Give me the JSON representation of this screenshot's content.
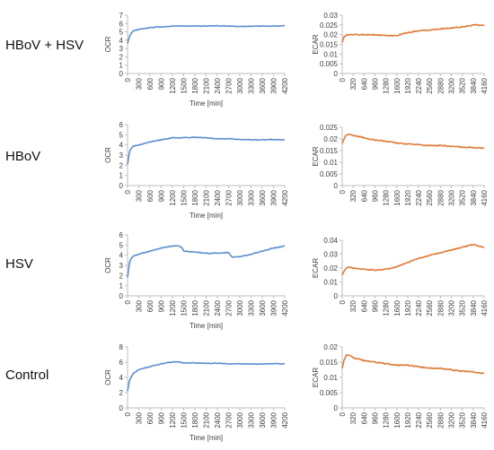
{
  "rows": [
    {
      "label": "HBoV + HSV"
    },
    {
      "label": "HBoV"
    },
    {
      "label": "HSV"
    },
    {
      "label": "Control"
    }
  ],
  "colors": {
    "ocr": "#5b8fd0",
    "ecar": "#e07b39",
    "axis": "#bfbfbf",
    "text": "#404040"
  },
  "chart_data": [
    {
      "type": "line",
      "row": "HBoV + HSV",
      "ylabel": "OCR",
      "xlabel": "Time [min]",
      "ylim": [
        0,
        7
      ],
      "yticks": [
        0,
        1,
        2,
        3,
        4,
        5,
        6,
        7
      ],
      "xticks": [
        0,
        300,
        600,
        900,
        1200,
        1500,
        1800,
        2100,
        2400,
        2700,
        3000,
        3300,
        3600,
        3900,
        4200
      ],
      "xlim": [
        0,
        4200
      ],
      "series": [
        {
          "x": [
            0,
            60,
            150,
            300,
            600,
            900,
            1200,
            1500,
            1800,
            2100,
            2400,
            2700,
            3000,
            3300,
            3600,
            3900,
            4200
          ],
          "y": [
            3.6,
            4.6,
            5.1,
            5.3,
            5.5,
            5.6,
            5.7,
            5.7,
            5.7,
            5.7,
            5.75,
            5.7,
            5.65,
            5.65,
            5.7,
            5.7,
            5.75
          ]
        }
      ]
    },
    {
      "type": "line",
      "row": "HBoV + HSV",
      "ylabel": "ECAR",
      "xlabel": "",
      "ylim": [
        0,
        0.03
      ],
      "yticks": [
        0,
        0.005,
        0.01,
        0.015,
        0.02,
        0.025,
        0.03
      ],
      "xticks": [
        0,
        320,
        640,
        960,
        1280,
        1600,
        1920,
        2240,
        2560,
        2880,
        3200,
        3520,
        3840,
        4160
      ],
      "xlim": [
        0,
        4160
      ],
      "series": [
        {
          "x": [
            0,
            50,
            150,
            320,
            640,
            960,
            1280,
            1600,
            1920,
            2240,
            2560,
            2880,
            3200,
            3520,
            3840,
            4160
          ],
          "y": [
            0.016,
            0.019,
            0.02,
            0.02,
            0.02,
            0.02,
            0.0195,
            0.0195,
            0.021,
            0.022,
            0.0225,
            0.023,
            0.0235,
            0.024,
            0.025,
            0.025
          ]
        }
      ]
    },
    {
      "type": "line",
      "row": "HBoV",
      "ylabel": "OCR",
      "xlabel": "Time [min]",
      "ylim": [
        0,
        6
      ],
      "yticks": [
        0,
        1,
        2,
        3,
        4,
        5,
        6
      ],
      "xticks": [
        0,
        300,
        600,
        900,
        1200,
        1500,
        1800,
        2100,
        2400,
        2700,
        3000,
        3300,
        3600,
        3900,
        4200
      ],
      "xlim": [
        0,
        4200
      ],
      "series": [
        {
          "x": [
            0,
            60,
            150,
            300,
            600,
            900,
            1200,
            1500,
            1800,
            2100,
            2400,
            2700,
            3000,
            3300,
            3600,
            3900,
            4200
          ],
          "y": [
            2.1,
            3.5,
            3.9,
            4.0,
            4.3,
            4.5,
            4.7,
            4.7,
            4.75,
            4.7,
            4.6,
            4.6,
            4.55,
            4.5,
            4.5,
            4.55,
            4.5
          ]
        }
      ]
    },
    {
      "type": "line",
      "row": "HBoV",
      "ylabel": "ECAR",
      "xlabel": "",
      "ylim": [
        0,
        0.025
      ],
      "yticks": [
        0,
        0.005,
        0.01,
        0.015,
        0.02,
        0.025
      ],
      "xticks": [
        0,
        320,
        640,
        960,
        1280,
        1600,
        1920,
        2240,
        2560,
        2880,
        3200,
        3520,
        3840,
        4160
      ],
      "xlim": [
        0,
        4160
      ],
      "series": [
        {
          "x": [
            0,
            80,
            160,
            320,
            640,
            960,
            1280,
            1600,
            1920,
            2240,
            2560,
            2880,
            3200,
            3520,
            3840,
            4160
          ],
          "y": [
            0.018,
            0.021,
            0.022,
            0.0215,
            0.0205,
            0.0195,
            0.019,
            0.0182,
            0.0178,
            0.0175,
            0.0172,
            0.0172,
            0.0168,
            0.0165,
            0.0163,
            0.016
          ]
        }
      ]
    },
    {
      "type": "line",
      "row": "HSV",
      "ylabel": "OCR",
      "xlabel": "Time [min]",
      "ylim": [
        0,
        6
      ],
      "yticks": [
        0,
        1,
        2,
        3,
        4,
        5,
        6
      ],
      "xticks": [
        0,
        300,
        600,
        900,
        1200,
        1500,
        1800,
        2100,
        2400,
        2700,
        3000,
        3300,
        3600,
        3900,
        4200
      ],
      "xlim": [
        0,
        4200
      ],
      "series": [
        {
          "x": [
            0,
            60,
            150,
            300,
            600,
            900,
            1200,
            1350,
            1450,
            1500,
            1800,
            2100,
            2400,
            2700,
            2750,
            2800,
            3000,
            3300,
            3600,
            3900,
            4200
          ],
          "y": [
            1.8,
            3.5,
            3.9,
            4.1,
            4.4,
            4.7,
            4.9,
            4.9,
            4.8,
            4.4,
            4.3,
            4.2,
            4.2,
            4.25,
            4.0,
            3.8,
            3.85,
            4.1,
            4.4,
            4.7,
            4.9
          ]
        }
      ]
    },
    {
      "type": "line",
      "row": "HSV",
      "ylabel": "ECAR",
      "xlabel": "",
      "ylim": [
        0,
        0.04
      ],
      "yticks": [
        0,
        0.01,
        0.02,
        0.03,
        0.04
      ],
      "xticks": [
        0,
        320,
        640,
        960,
        1280,
        1600,
        1920,
        2240,
        2560,
        2880,
        3200,
        3520,
        3840,
        4160
      ],
      "xlim": [
        0,
        4160
      ],
      "series": [
        {
          "x": [
            0,
            80,
            160,
            320,
            640,
            960,
            1280,
            1600,
            1920,
            2240,
            2560,
            2880,
            3200,
            3520,
            3840,
            4000,
            4160
          ],
          "y": [
            0.015,
            0.019,
            0.021,
            0.02,
            0.019,
            0.0185,
            0.019,
            0.021,
            0.024,
            0.027,
            0.029,
            0.031,
            0.033,
            0.035,
            0.037,
            0.036,
            0.035
          ]
        }
      ]
    },
    {
      "type": "line",
      "row": "Control",
      "ylabel": "OCR",
      "xlabel": "Time [min]",
      "ylim": [
        0,
        8
      ],
      "yticks": [
        0,
        2,
        4,
        6,
        8
      ],
      "xticks": [
        0,
        300,
        600,
        900,
        1200,
        1500,
        1800,
        2100,
        2400,
        2700,
        3000,
        3300,
        3600,
        3900,
        4200
      ],
      "xlim": [
        0,
        4200
      ],
      "series": [
        {
          "x": [
            0,
            60,
            150,
            300,
            600,
            900,
            1200,
            1350,
            1500,
            1800,
            2100,
            2400,
            2700,
            3000,
            3300,
            3600,
            3900,
            4200
          ],
          "y": [
            2.2,
            3.8,
            4.5,
            5.0,
            5.4,
            5.8,
            6.0,
            6.05,
            5.9,
            5.9,
            5.85,
            5.85,
            5.8,
            5.8,
            5.75,
            5.75,
            5.8,
            5.8
          ]
        }
      ]
    },
    {
      "type": "line",
      "row": "Control",
      "ylabel": "ECAR",
      "xlabel": "",
      "ylim": [
        0,
        0.02
      ],
      "yticks": [
        0,
        0.005,
        0.01,
        0.015,
        0.02
      ],
      "xticks": [
        0,
        320,
        640,
        960,
        1280,
        1600,
        1920,
        2240,
        2560,
        2880,
        3200,
        3520,
        3840,
        4160
      ],
      "xlim": [
        0,
        4160
      ],
      "series": [
        {
          "x": [
            0,
            60,
            140,
            240,
            320,
            480,
            640,
            960,
            1280,
            1600,
            1920,
            2240,
            2560,
            2880,
            3200,
            3520,
            3840,
            4160
          ],
          "y": [
            0.013,
            0.016,
            0.0175,
            0.017,
            0.0165,
            0.016,
            0.0155,
            0.015,
            0.0145,
            0.014,
            0.014,
            0.0135,
            0.013,
            0.013,
            0.0125,
            0.012,
            0.0118,
            0.0113
          ]
        }
      ]
    }
  ]
}
